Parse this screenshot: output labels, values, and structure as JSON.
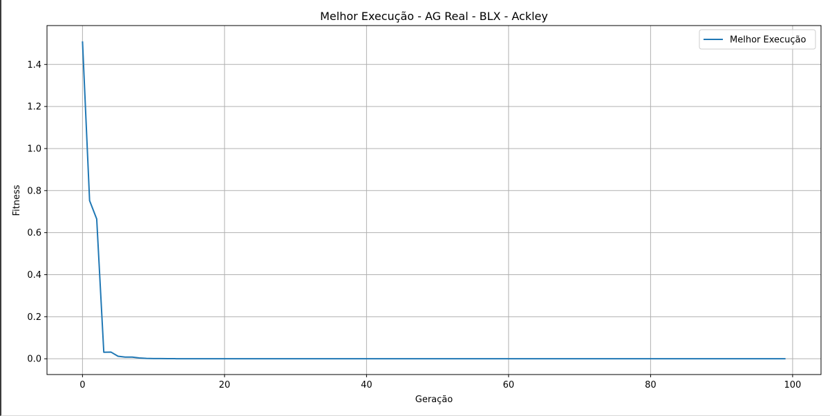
{
  "chart_data": {
    "type": "line",
    "title": "Melhor Execução - AG Real - BLX - Ackley",
    "xlabel": "Geração",
    "ylabel": "Fitness",
    "xlim": [
      -5,
      104
    ],
    "ylim": [
      -0.075,
      1.585
    ],
    "xticks": [
      0,
      20,
      40,
      60,
      80,
      100
    ],
    "yticks": [
      0.0,
      0.2,
      0.4,
      0.6,
      0.8,
      1.0,
      1.2,
      1.4
    ],
    "ytick_labels": [
      "0.0",
      "0.2",
      "0.4",
      "0.6",
      "0.8",
      "1.0",
      "1.2",
      "1.4"
    ],
    "grid": true,
    "legend_position": "top-right",
    "series": [
      {
        "name": "Melhor Execução",
        "color": "#1f77b4",
        "x_start": 0,
        "x_step": 1,
        "values": [
          1.51,
          0.752,
          0.665,
          0.031,
          0.032,
          0.012,
          0.008,
          0.008,
          0.004,
          0.002,
          0.001,
          0.001,
          0.0005,
          0.0004,
          0.0003,
          0.0002,
          0.0002,
          0.0001,
          0.0001,
          0.0001,
          0.0001,
          0.0,
          0.0,
          0.0,
          0.0,
          0.0,
          0.0,
          0.0,
          0.0,
          0.0,
          0.0,
          0.0,
          0.0,
          0.0,
          0.0,
          0.0,
          0.0,
          0.0,
          0.0,
          0.0,
          0.0,
          0.0,
          0.0,
          0.0,
          0.0,
          0.0,
          0.0,
          0.0,
          0.0,
          0.0,
          0.0,
          0.0,
          0.0,
          0.0,
          0.0,
          0.0,
          0.0,
          0.0,
          0.0,
          0.0,
          0.0,
          0.0,
          0.0,
          0.0,
          0.0,
          0.0,
          0.0,
          0.0,
          0.0,
          0.0,
          0.0,
          0.0,
          0.0,
          0.0,
          0.0,
          0.0,
          0.0,
          0.0,
          0.0,
          0.0,
          0.0,
          0.0,
          0.0,
          0.0,
          0.0,
          0.0,
          0.0,
          0.0,
          0.0,
          0.0,
          0.0,
          0.0,
          0.0,
          0.0,
          0.0,
          0.0,
          0.0,
          0.0,
          0.0,
          0.0
        ]
      }
    ]
  }
}
